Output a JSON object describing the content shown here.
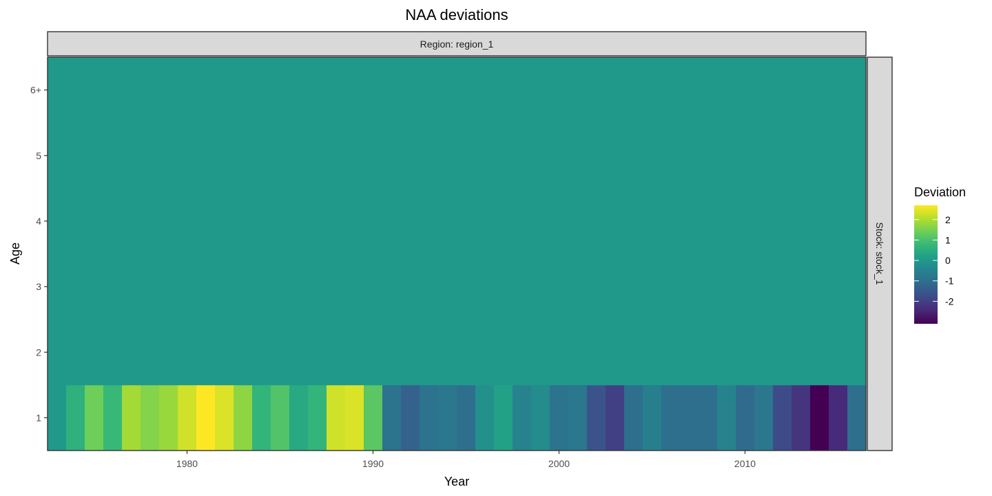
{
  "chart_data": {
    "type": "heatmap",
    "title": "NAA deviations",
    "xlabel": "Year",
    "ylabel": "Age",
    "facet_top": "Region: region_1",
    "facet_right": "Stock: stock_1",
    "x_ticks": [
      1980,
      1990,
      2000,
      2010
    ],
    "y_categories": [
      "1",
      "2",
      "3",
      "4",
      "5",
      "6+"
    ],
    "years": [
      1973,
      1974,
      1975,
      1976,
      1977,
      1978,
      1979,
      1980,
      1981,
      1982,
      1983,
      1984,
      1985,
      1986,
      1987,
      1988,
      1989,
      1990,
      1991,
      1992,
      1993,
      1994,
      1995,
      1996,
      1997,
      1998,
      1999,
      2000,
      2001,
      2002,
      2003,
      2004,
      2005,
      2006,
      2007,
      2008,
      2009,
      2010,
      2011,
      2012,
      2013,
      2014,
      2015,
      2016
    ],
    "age1_values": [
      0.0,
      0.6,
      1.4,
      0.8,
      1.9,
      1.6,
      1.8,
      2.3,
      2.7,
      2.4,
      1.7,
      0.7,
      1.1,
      0.4,
      0.7,
      2.3,
      2.4,
      1.2,
      -0.9,
      -1.3,
      -0.9,
      -0.8,
      -1.0,
      -0.2,
      0.2,
      -0.5,
      -0.3,
      -0.9,
      -0.8,
      -1.6,
      -2.0,
      -1.0,
      -0.6,
      -1.0,
      -1.0,
      -1.0,
      -0.5,
      -1.1,
      -0.8,
      -1.8,
      -2.2,
      -3.1,
      -2.4,
      -1.0
    ],
    "other_ages_value": 0.0,
    "legend": {
      "title": "Deviation",
      "ticks": [
        "2",
        "1",
        "0",
        "-1",
        "-2"
      ],
      "range": [
        -3.1,
        2.7
      ],
      "palette": "viridis"
    }
  }
}
